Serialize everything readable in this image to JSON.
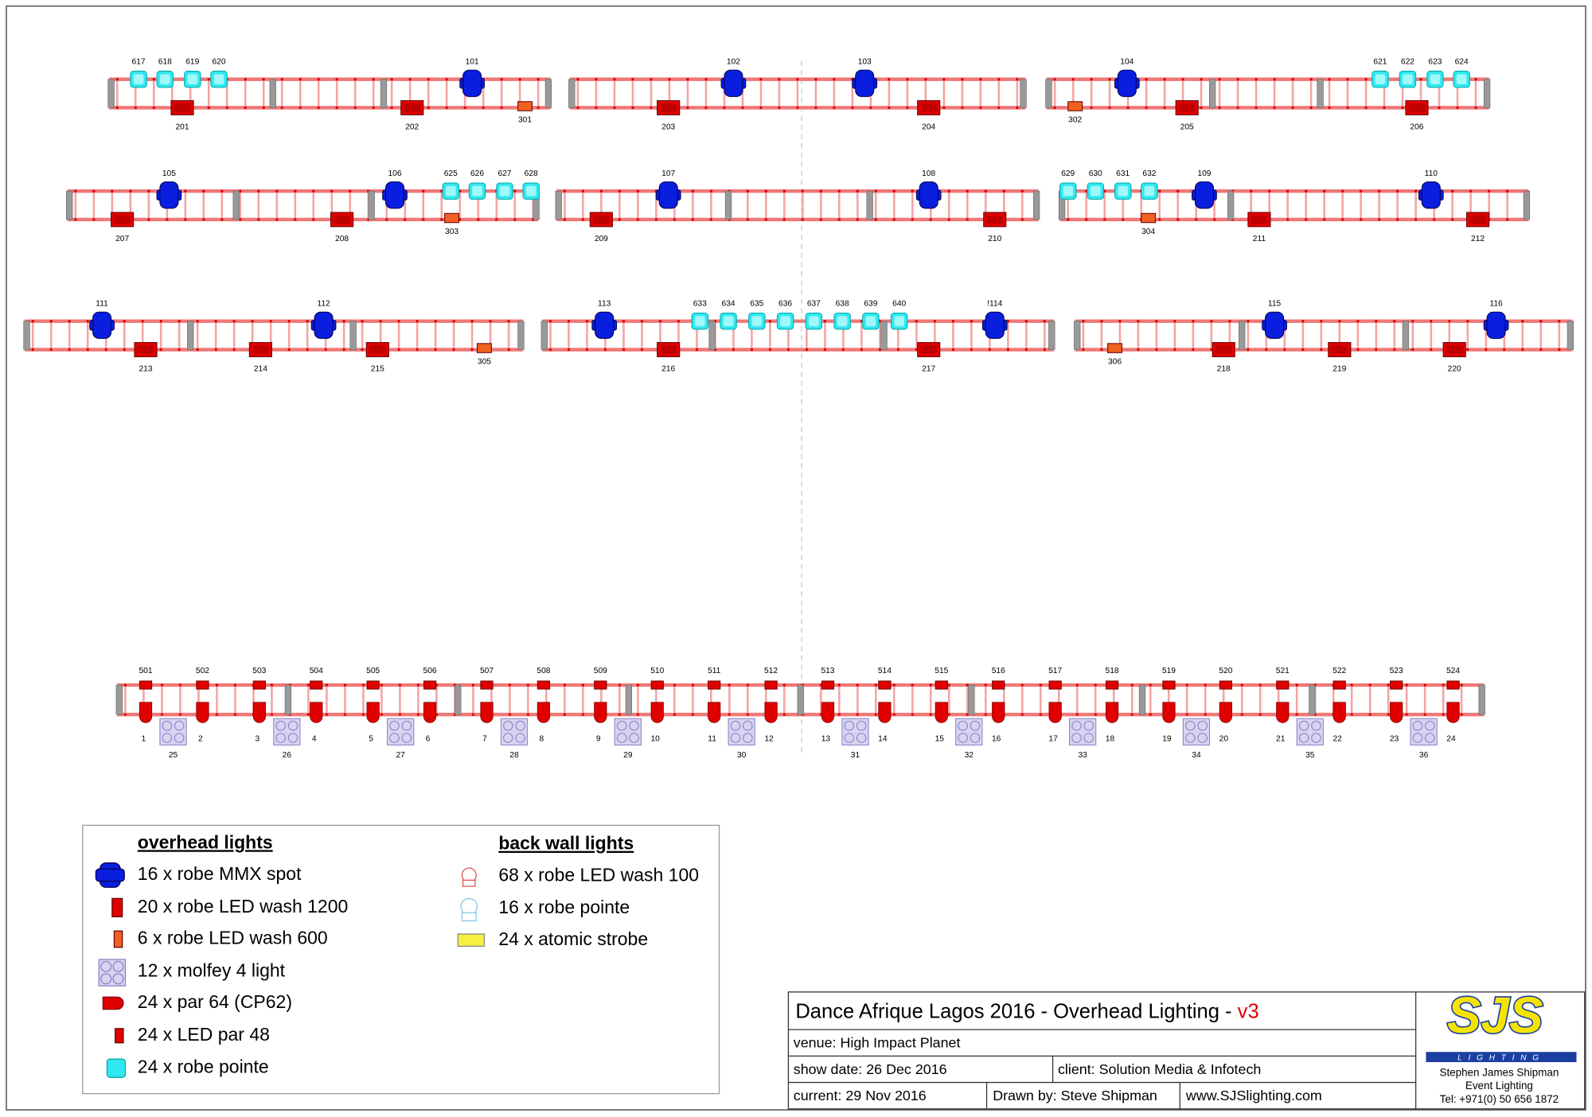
{
  "trusses": [
    {
      "fixtures": [
        "617",
        "618",
        "619",
        "620",
        "101",
        "201",
        "202",
        "301"
      ]
    },
    {
      "fixtures": [
        "102",
        "103",
        "203",
        "204"
      ]
    },
    {
      "fixtures": [
        "104",
        "621",
        "622",
        "623",
        "624",
        "302",
        "205",
        "206"
      ]
    },
    {
      "fixtures": [
        "105",
        "106",
        "625",
        "626",
        "627",
        "628",
        "207",
        "208",
        "303"
      ]
    },
    {
      "fixtures": [
        "107",
        "108",
        "209",
        "210"
      ]
    },
    {
      "fixtures": [
        "629",
        "630",
        "631",
        "632",
        "109",
        "110",
        "304",
        "211",
        "212"
      ]
    },
    {
      "fixtures": [
        "111",
        "112",
        "213",
        "214",
        "215",
        "305"
      ]
    },
    {
      "fixtures": [
        "113",
        "!114",
        "633",
        "634",
        "635",
        "636",
        "637",
        "638",
        "639",
        "640",
        "216",
        "217"
      ]
    },
    {
      "fixtures": [
        "306",
        "115",
        "116",
        "218",
        "219",
        "220"
      ]
    }
  ],
  "back_wall": {
    "led_par": [
      "501",
      "502",
      "503",
      "504",
      "505",
      "506",
      "507",
      "508",
      "509",
      "510",
      "511",
      "512",
      "513",
      "514",
      "515",
      "516",
      "517",
      "518",
      "519",
      "520",
      "521",
      "522",
      "523",
      "524"
    ],
    "par64": [
      "1",
      "2",
      "3",
      "4",
      "5",
      "6",
      "7",
      "8",
      "9",
      "10",
      "11",
      "12",
      "13",
      "14",
      "15",
      "16",
      "17",
      "18",
      "19",
      "20",
      "21",
      "22",
      "23",
      "24"
    ],
    "molfey": [
      "25",
      "26",
      "27",
      "28",
      "29",
      "30",
      "31",
      "32",
      "33",
      "34",
      "35",
      "36"
    ]
  },
  "legend": {
    "overhead_title": "overhead lights",
    "overhead": [
      "16 x robe MMX spot",
      "20 x robe LED wash 1200",
      "6 x robe LED wash 600",
      "12 x molfey 4 light",
      "24 x par 64 (CP62)",
      "24 x LED par 48",
      "24 x robe pointe"
    ],
    "back_wall_title": "back wall lights",
    "back_wall": [
      "68 x robe LED wash 100",
      "16 x robe pointe",
      "24 x atomic strobe"
    ]
  },
  "title_block": {
    "title": "Dance Afrique Lagos 2016 - Overhead Lighting -",
    "version": "v3",
    "venue": "venue: High Impact Planet",
    "show_date": "show date: 26 Dec 2016",
    "client": "client: Solution Media & Infotech",
    "current": "current: 29 Nov 2016",
    "drawn_by": "Drawn by: Steve Shipman",
    "website": "www.SJSlighting.com"
  },
  "logo": {
    "mark": "SJS",
    "sub": "LIGHTING",
    "name": "Stephen James Shipman",
    "tagline": "Event Lighting",
    "tel": "Tel: +971(0) 50 656 1872"
  }
}
